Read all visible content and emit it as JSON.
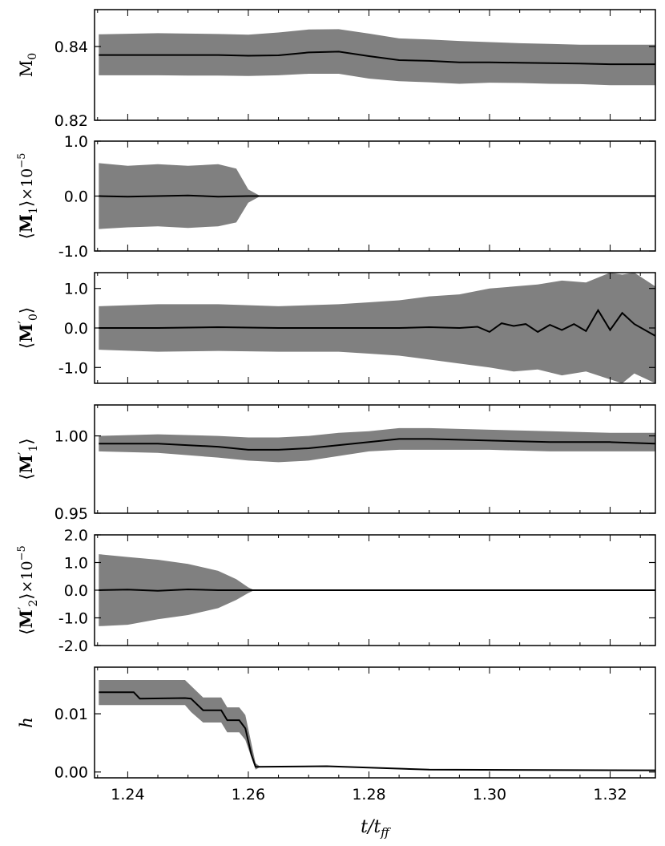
{
  "chart_data": [
    {
      "id": "M0",
      "type": "area",
      "ylabel_main": "M",
      "ylabel_sub": "0",
      "ylabel_style": "plain",
      "ylim": [
        0.82,
        0.85
      ],
      "yticks": [
        0.82,
        0.84
      ],
      "ytick_labels": [
        "0.82",
        "0.84"
      ],
      "xlim": [
        1.2345,
        1.3275
      ],
      "series": [
        {
          "kind": "mean",
          "x": [
            1.2352,
            1.245,
            1.25,
            1.255,
            1.26,
            1.265,
            1.27,
            1.275,
            1.28,
            1.285,
            1.29,
            1.295,
            1.3,
            1.305,
            1.31,
            1.315,
            1.32,
            1.3275
          ],
          "values": [
            0.8377,
            0.8377,
            0.8377,
            0.8377,
            0.8375,
            0.8376,
            0.8384,
            0.8386,
            0.8374,
            0.8363,
            0.8361,
            0.8357,
            0.8357,
            0.8356,
            0.8355,
            0.8354,
            0.8352,
            0.8352
          ]
        },
        {
          "kind": "band",
          "x": [
            1.2352,
            1.245,
            1.25,
            1.255,
            1.26,
            1.265,
            1.27,
            1.275,
            1.28,
            1.285,
            1.29,
            1.295,
            1.3,
            1.305,
            1.31,
            1.315,
            1.32,
            1.3275
          ],
          "upper": [
            0.8433,
            0.8436,
            0.8435,
            0.8434,
            0.8432,
            0.8438,
            0.8446,
            0.8447,
            0.8435,
            0.8422,
            0.8419,
            0.8415,
            0.8412,
            0.8409,
            0.8407,
            0.8405,
            0.8405,
            0.8405
          ],
          "lower": [
            0.8322,
            0.8322,
            0.8321,
            0.8321,
            0.832,
            0.8322,
            0.8326,
            0.8326,
            0.8313,
            0.8306,
            0.8303,
            0.8299,
            0.8302,
            0.8301,
            0.8299,
            0.8298,
            0.8295,
            0.8295
          ]
        }
      ]
    },
    {
      "id": "M1",
      "type": "area",
      "ylabel_main": "M",
      "ylabel_sub": "1",
      "ylabel_style": "bracket-bold",
      "ylabel_suffix": "×10",
      "ylabel_exp": "−5",
      "ylim": [
        -1.0,
        1.0
      ],
      "yticks": [
        -1.0,
        0.0,
        1.0
      ],
      "ytick_labels": [
        "-1.0",
        "0.0",
        "1.0"
      ],
      "xlim": [
        1.2345,
        1.3275
      ],
      "series": [
        {
          "kind": "mean",
          "x": [
            1.2352,
            1.24,
            1.245,
            1.25,
            1.255,
            1.26,
            1.262,
            1.27,
            1.28,
            1.3,
            1.3275
          ],
          "values": [
            0.0,
            -0.01,
            0.0,
            0.01,
            -0.01,
            0.0,
            0.0,
            0.0,
            0.0,
            0.0,
            0.0
          ]
        },
        {
          "kind": "band",
          "x": [
            1.2352,
            1.24,
            1.245,
            1.25,
            1.255,
            1.258,
            1.26,
            1.262,
            1.27,
            1.28,
            1.3,
            1.3275
          ],
          "upper": [
            0.6,
            0.55,
            0.58,
            0.55,
            0.58,
            0.5,
            0.12,
            0.0,
            0.0,
            0.0,
            0.0,
            0.0
          ],
          "lower": [
            -0.6,
            -0.57,
            -0.55,
            -0.58,
            -0.55,
            -0.48,
            -0.12,
            0.0,
            0.0,
            0.0,
            0.0,
            0.0
          ]
        }
      ]
    },
    {
      "id": "M0p",
      "type": "area",
      "ylabel_main": "M",
      "ylabel_sub": "0",
      "ylabel_style": "bracket-bold-prime",
      "ylim": [
        -1.4,
        1.4
      ],
      "yticks": [
        -1.0,
        0.0,
        1.0
      ],
      "ytick_labels": [
        "-1.0",
        "0.0",
        "1.0"
      ],
      "xlim": [
        1.2345,
        1.3275
      ],
      "series": [
        {
          "kind": "mean",
          "x": [
            1.2352,
            1.245,
            1.255,
            1.265,
            1.275,
            1.285,
            1.29,
            1.295,
            1.298,
            1.3,
            1.302,
            1.304,
            1.306,
            1.308,
            1.31,
            1.312,
            1.314,
            1.316,
            1.318,
            1.32,
            1.322,
            1.324,
            1.3275
          ],
          "values": [
            0.0,
            0.0,
            0.02,
            0.0,
            0.0,
            0.0,
            0.02,
            0.0,
            0.03,
            -0.1,
            0.12,
            0.05,
            0.1,
            -0.1,
            0.08,
            -0.05,
            0.1,
            -0.08,
            0.45,
            -0.05,
            0.38,
            0.1,
            -0.2
          ]
        },
        {
          "kind": "band",
          "x": [
            1.2352,
            1.245,
            1.255,
            1.265,
            1.275,
            1.28,
            1.285,
            1.29,
            1.295,
            1.3,
            1.304,
            1.308,
            1.312,
            1.316,
            1.32,
            1.322,
            1.324,
            1.3275
          ],
          "upper": [
            0.55,
            0.6,
            0.6,
            0.55,
            0.6,
            0.65,
            0.7,
            0.8,
            0.85,
            1.0,
            1.05,
            1.1,
            1.2,
            1.15,
            1.4,
            1.35,
            1.4,
            1.05
          ],
          "lower": [
            -0.55,
            -0.6,
            -0.58,
            -0.6,
            -0.6,
            -0.65,
            -0.7,
            -0.8,
            -0.9,
            -1.0,
            -1.1,
            -1.05,
            -1.2,
            -1.1,
            -1.3,
            -1.4,
            -1.15,
            -1.4
          ]
        }
      ]
    },
    {
      "id": "M1p",
      "type": "area",
      "ylabel_main": "M",
      "ylabel_sub": "1",
      "ylabel_style": "bracket-bold-prime",
      "ylim": [
        0.95,
        1.02
      ],
      "yticks": [
        0.95,
        1.0
      ],
      "ytick_labels": [
        "0.95",
        "1.00"
      ],
      "xlim": [
        1.2345,
        1.3275
      ],
      "series": [
        {
          "kind": "mean",
          "x": [
            1.2352,
            1.245,
            1.255,
            1.26,
            1.265,
            1.27,
            1.275,
            1.28,
            1.285,
            1.29,
            1.3,
            1.31,
            1.32,
            1.3275
          ],
          "values": [
            0.995,
            0.995,
            0.993,
            0.991,
            0.991,
            0.992,
            0.994,
            0.996,
            0.998,
            0.998,
            0.997,
            0.996,
            0.996,
            0.995
          ]
        },
        {
          "kind": "band",
          "x": [
            1.2352,
            1.245,
            1.255,
            1.26,
            1.265,
            1.27,
            1.275,
            1.28,
            1.285,
            1.29,
            1.3,
            1.31,
            1.32,
            1.3275
          ],
          "upper": [
            1.0,
            1.001,
            1.0,
            0.999,
            0.999,
            1.0,
            1.002,
            1.003,
            1.005,
            1.005,
            1.004,
            1.003,
            1.002,
            1.002
          ],
          "lower": [
            0.99,
            0.989,
            0.986,
            0.984,
            0.983,
            0.984,
            0.987,
            0.99,
            0.991,
            0.991,
            0.991,
            0.99,
            0.99,
            0.99
          ]
        }
      ]
    },
    {
      "id": "M2p",
      "type": "area",
      "ylabel_main": "M",
      "ylabel_sub": "2",
      "ylabel_style": "bracket-bold-prime",
      "ylabel_suffix": "×10",
      "ylabel_exp": "−5",
      "ylim": [
        -2.0,
        2.0
      ],
      "yticks": [
        -2.0,
        -1.0,
        0.0,
        1.0,
        2.0
      ],
      "ytick_labels": [
        "-2.0",
        "-1.0",
        "0.0",
        "1.0",
        "2.0"
      ],
      "xlim": [
        1.2345,
        1.3275
      ],
      "series": [
        {
          "kind": "mean",
          "x": [
            1.2352,
            1.24,
            1.245,
            1.25,
            1.255,
            1.26,
            1.27,
            1.3275
          ],
          "values": [
            0.0,
            0.02,
            -0.02,
            0.03,
            0.0,
            0.0,
            0.0,
            0.0
          ]
        },
        {
          "kind": "band",
          "x": [
            1.2352,
            1.24,
            1.245,
            1.25,
            1.255,
            1.258,
            1.26,
            1.261,
            1.27,
            1.3275
          ],
          "upper": [
            1.3,
            1.2,
            1.1,
            0.95,
            0.7,
            0.4,
            0.1,
            0.0,
            0.0,
            0.0
          ],
          "lower": [
            -1.3,
            -1.25,
            -1.05,
            -0.9,
            -0.65,
            -0.35,
            -0.1,
            0.0,
            0.0,
            0.0
          ]
        }
      ]
    },
    {
      "id": "h",
      "type": "area",
      "ylabel_main": "h",
      "ylabel_sub": "",
      "ylabel_style": "italic",
      "ylim": [
        -0.001,
        0.018
      ],
      "yticks": [
        0.0,
        0.01
      ],
      "ytick_labels": [
        "0.00",
        "0.01"
      ],
      "xlim": [
        1.2345,
        1.3275
      ],
      "xticks": [
        1.24,
        1.26,
        1.28,
        1.3,
        1.32
      ],
      "xtick_labels": [
        "1.24",
        "1.26",
        "1.28",
        "1.30",
        "1.32"
      ],
      "xlabel": "t/t",
      "xlabel_sub": "ff",
      "series": [
        {
          "kind": "mean",
          "x": [
            1.2352,
            1.241,
            1.242,
            1.2495,
            1.2505,
            1.2525,
            1.2535,
            1.2555,
            1.2565,
            1.2575,
            1.2585,
            1.2595,
            1.2605,
            1.2612,
            1.273,
            1.29,
            1.3275
          ],
          "values": [
            0.0137,
            0.0137,
            0.0126,
            0.0127,
            0.0126,
            0.0106,
            0.0106,
            0.0106,
            0.0089,
            0.0089,
            0.0089,
            0.0075,
            0.003,
            0.0009,
            0.001,
            0.0004,
            0.0003
          ]
        },
        {
          "kind": "band",
          "x": [
            1.2352,
            1.2495,
            1.2505,
            1.2525,
            1.2555,
            1.2565,
            1.2585,
            1.2595,
            1.2612,
            1.262
          ],
          "upper": [
            0.0158,
            0.0158,
            0.0148,
            0.0128,
            0.0128,
            0.0111,
            0.0111,
            0.0098,
            0.0015,
            0.0009
          ],
          "lower": [
            0.0115,
            0.0115,
            0.0103,
            0.0085,
            0.0085,
            0.0068,
            0.0068,
            0.0055,
            0.0004,
            0.0009
          ]
        }
      ]
    }
  ]
}
